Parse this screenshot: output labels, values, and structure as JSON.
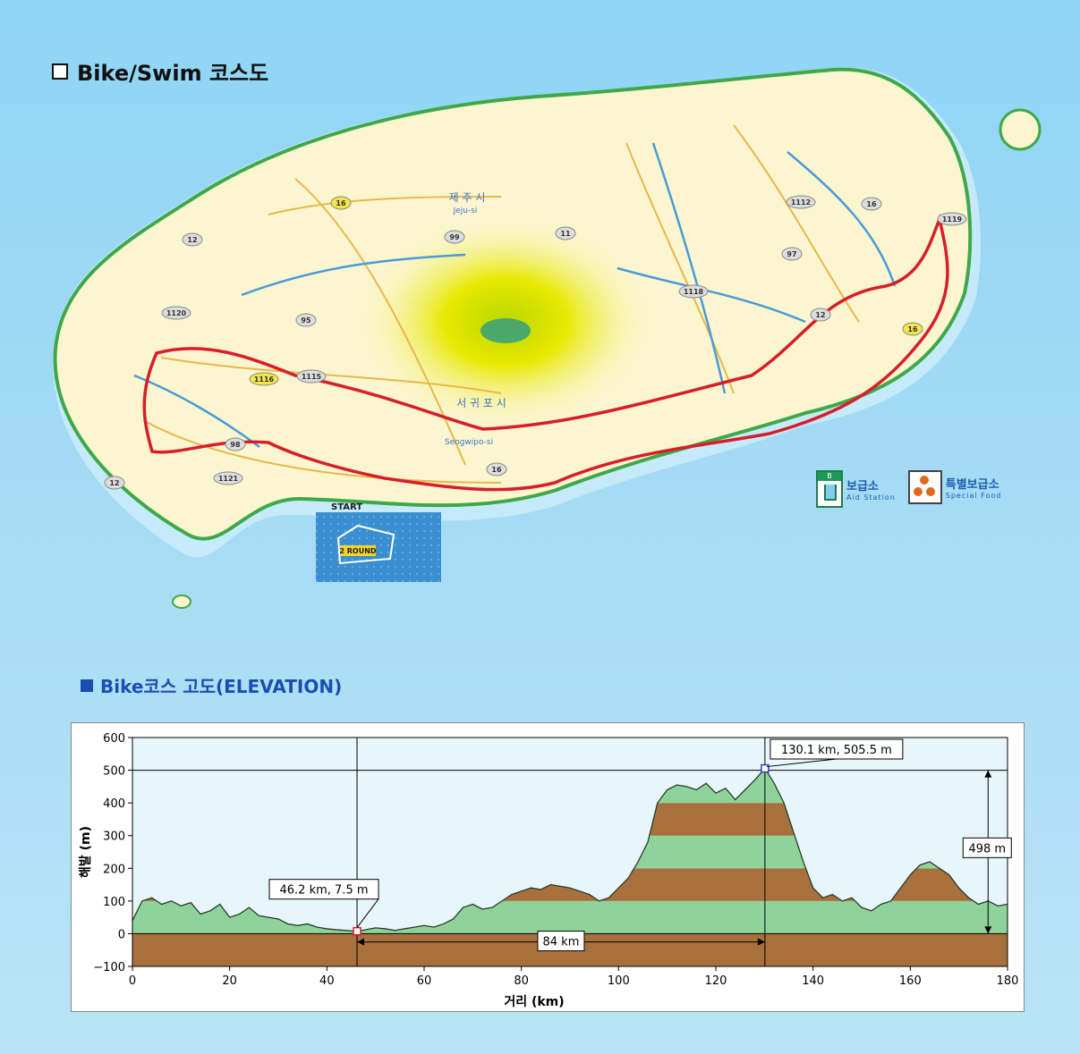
{
  "map": {
    "title": "Bike/Swim 코스도",
    "labels": {
      "jeju_city_ko": "제 주 시",
      "jeju_city_en": "Jeju-si",
      "seogwipo_ko": "서 귀 포 시",
      "seogwipo_en": "Seogwipo-si",
      "start": "START",
      "swim_round": "2 ROUND"
    },
    "road_numbers": [
      "16",
      "12",
      "1120",
      "95",
      "99",
      "11",
      "1115",
      "1118",
      "97",
      "1112",
      "1119",
      "16",
      "12",
      "16",
      "98",
      "1121",
      "1116",
      "12",
      "16"
    ],
    "legend": {
      "aid_badge": "B",
      "aid_ko": "보급소",
      "aid_en": "Aid Station",
      "food_ko": "특별보급소",
      "food_en": "Special Food"
    },
    "colors": {
      "sea": "#8fd4f5",
      "land": "#fbf6cf",
      "route": "#d81e2a",
      "peak": "#e7e500"
    }
  },
  "elevation": {
    "title": "Bike코스 고도(ELEVATION)",
    "annotations": {
      "low_point": "46.2 km, 7.5 m",
      "high_point": "130.1 km, 505.5 m",
      "distance": "84 km",
      "height_diff": "498 m"
    }
  },
  "chart_data": {
    "type": "area",
    "title": "",
    "xlabel": "거리   (km)",
    "ylabel": "해발 (m)",
    "xlim": [
      0,
      180
    ],
    "ylim": [
      -100,
      600
    ],
    "xticks": [
      0,
      20,
      40,
      60,
      80,
      100,
      120,
      140,
      160,
      180
    ],
    "yticks": [
      -100,
      0,
      100,
      200,
      300,
      400,
      500,
      600
    ],
    "x": [
      0,
      2,
      4,
      6,
      8,
      10,
      12,
      14,
      16,
      18,
      20,
      22,
      24,
      26,
      28,
      30,
      32,
      34,
      36,
      38,
      40,
      42,
      44,
      46.2,
      48,
      50,
      52,
      54,
      56,
      58,
      60,
      62,
      64,
      66,
      68,
      70,
      72,
      74,
      76,
      78,
      80,
      82,
      84,
      86,
      88,
      90,
      92,
      94,
      96,
      98,
      100,
      102,
      104,
      106,
      108,
      110,
      112,
      114,
      116,
      118,
      120,
      122,
      124,
      126,
      128,
      130.1,
      132,
      134,
      136,
      138,
      140,
      142,
      144,
      146,
      148,
      150,
      152,
      154,
      156,
      158,
      160,
      162,
      164,
      166,
      168,
      170,
      172,
      174,
      176,
      178,
      180
    ],
    "y": [
      40,
      100,
      110,
      90,
      100,
      85,
      95,
      60,
      70,
      90,
      50,
      60,
      80,
      55,
      50,
      45,
      30,
      25,
      30,
      20,
      15,
      12,
      10,
      7.5,
      12,
      18,
      15,
      10,
      15,
      20,
      25,
      20,
      30,
      45,
      80,
      90,
      75,
      80,
      100,
      120,
      130,
      140,
      135,
      150,
      145,
      140,
      130,
      120,
      100,
      110,
      140,
      170,
      220,
      280,
      400,
      440,
      455,
      450,
      440,
      460,
      430,
      445,
      410,
      440,
      470,
      505.5,
      460,
      400,
      310,
      220,
      140,
      110,
      120,
      100,
      110,
      80,
      70,
      90,
      100,
      140,
      180,
      210,
      220,
      200,
      180,
      140,
      110,
      90,
      100,
      85,
      90
    ]
  }
}
